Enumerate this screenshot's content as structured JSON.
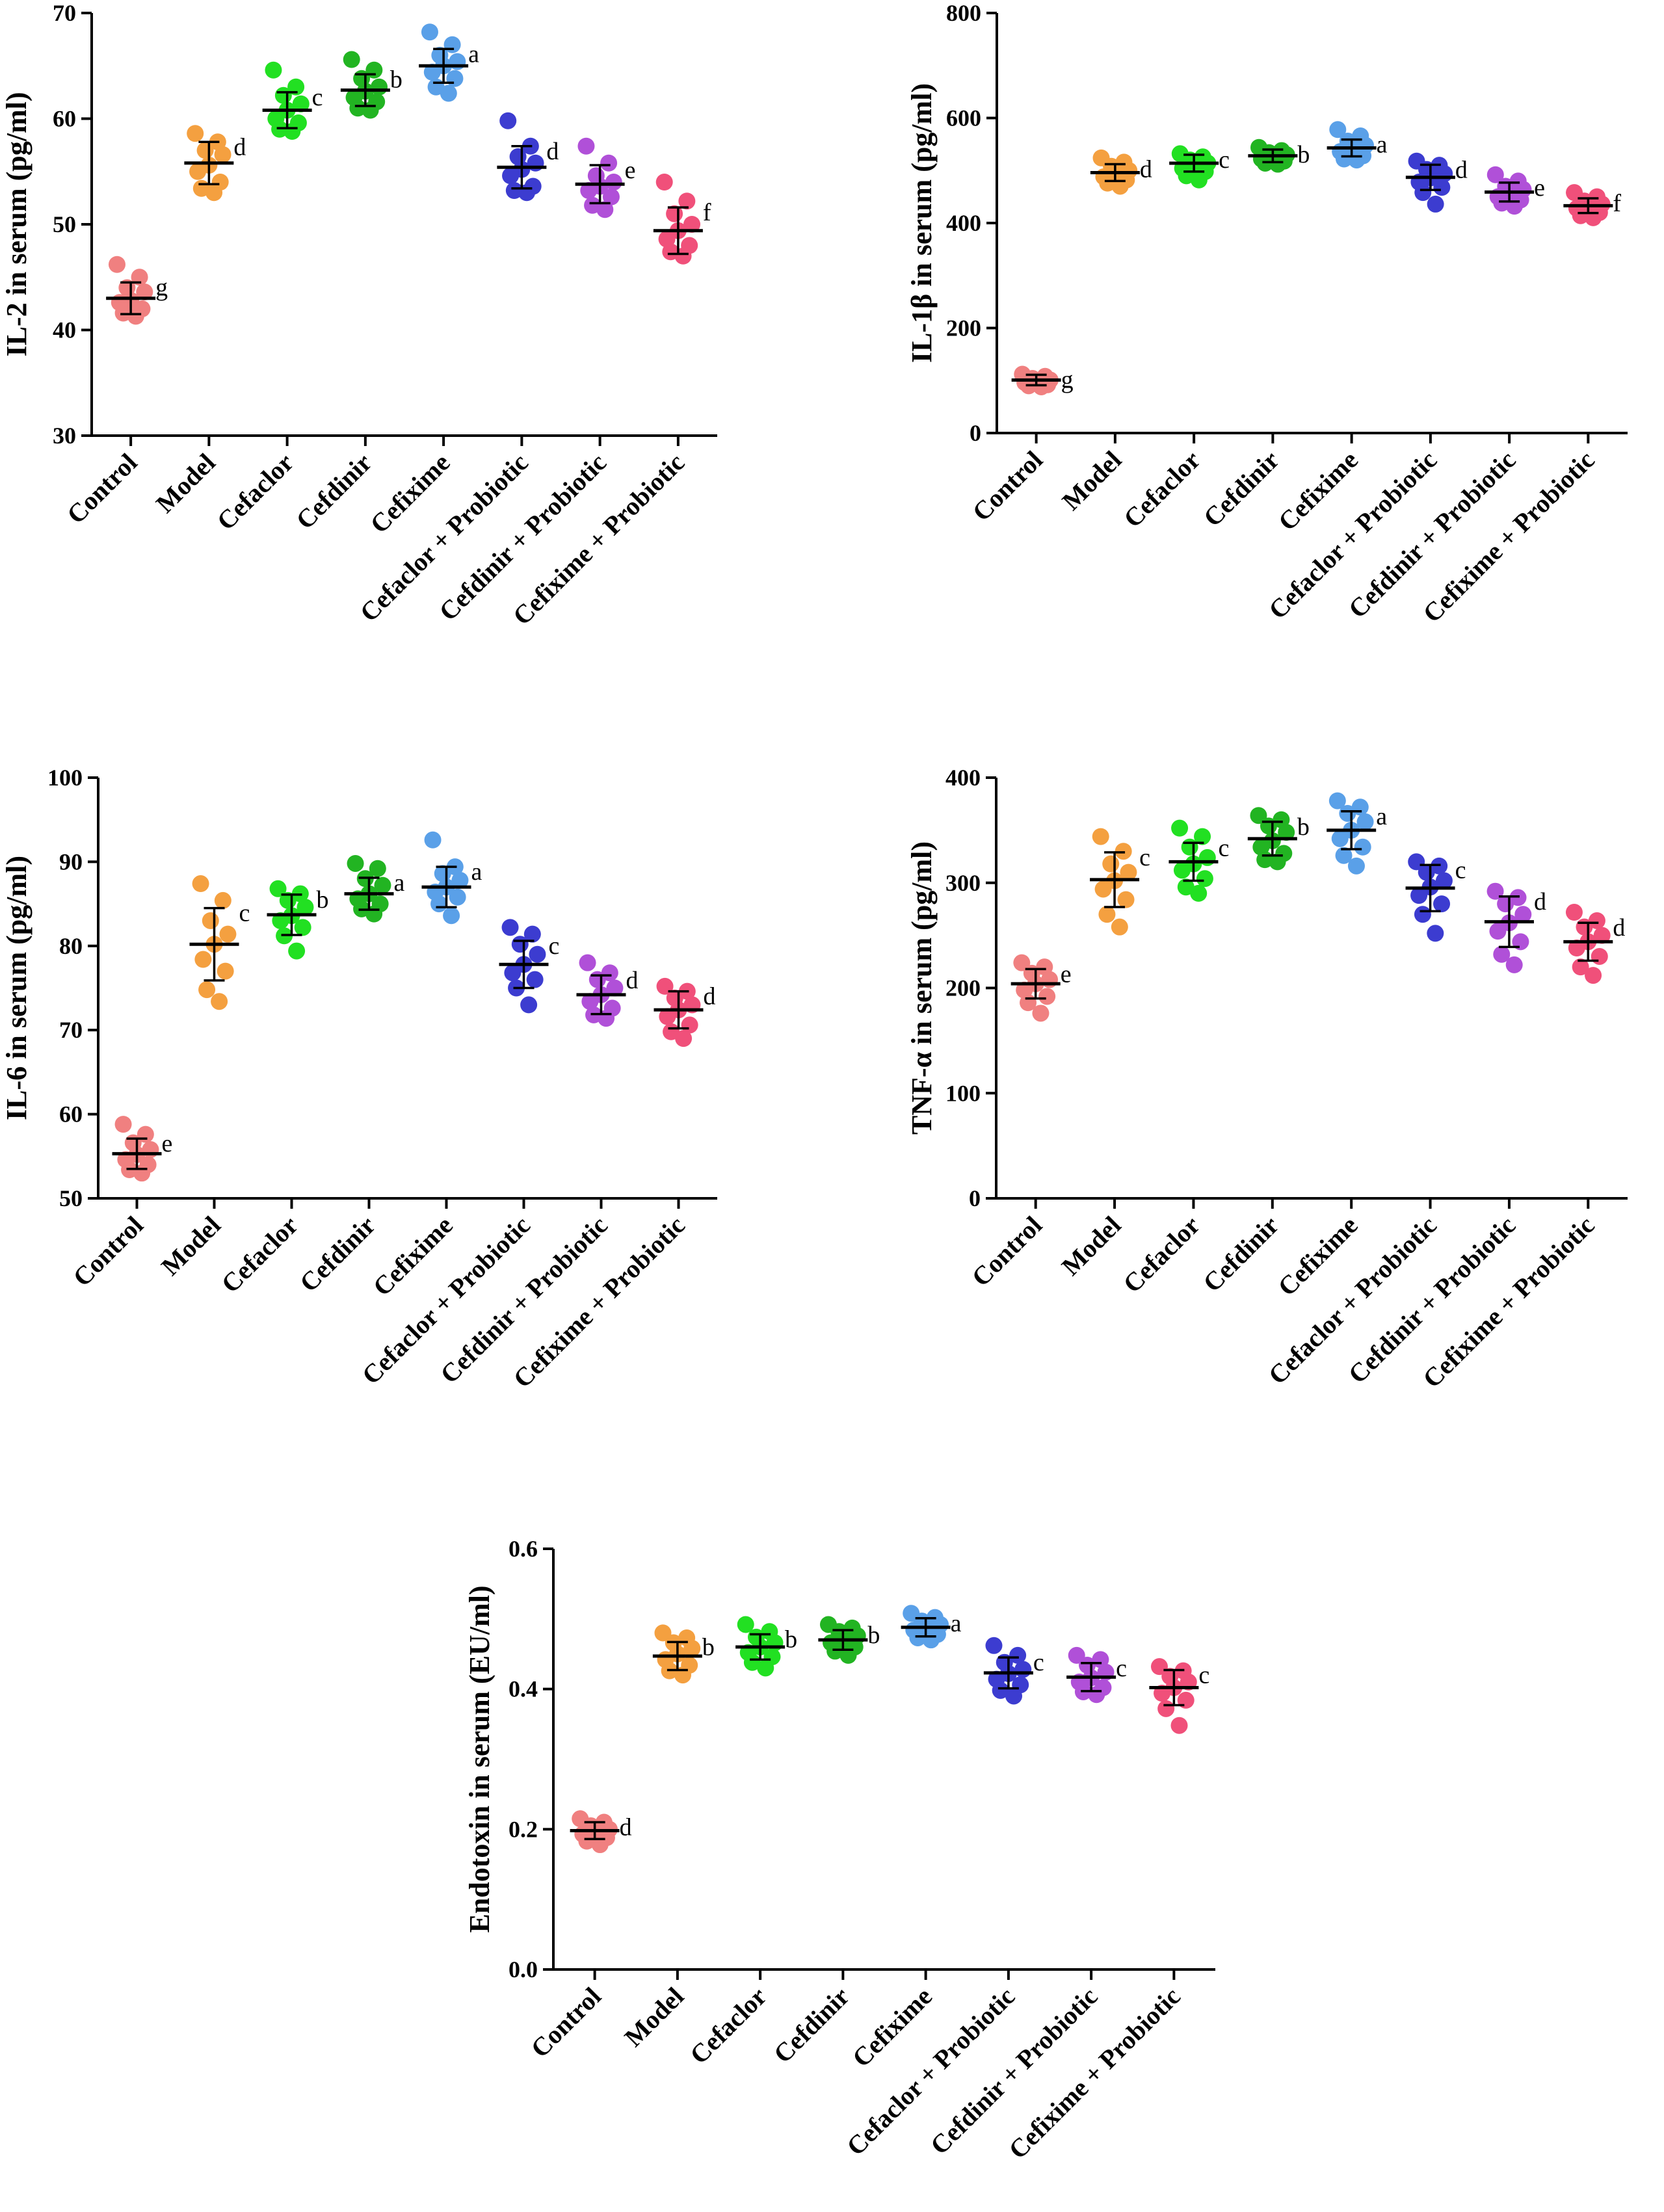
{
  "chart_data": [
    {
      "id": "il2",
      "type": "scatter",
      "ylabel": "IL-2 in serum (pg/ml)",
      "ylim": [
        30,
        70
      ],
      "yticks": [
        30,
        40,
        50,
        60,
        70
      ],
      "yticklabels": [
        "30",
        "40",
        "50",
        "60",
        "70"
      ],
      "categories": [
        "Control",
        "Model",
        "Cefaclor",
        "Cefdinir",
        "Cefixime",
        "Cefaclor + Probiotic",
        "Cefdinir + Probiotic",
        "Cefixime + Probiotic"
      ],
      "groups": [
        {
          "mean": 43.0,
          "sd": 1.5,
          "sig": "g",
          "points": [
            46.2,
            45.0,
            44.0,
            43.6,
            42.8,
            42.6,
            42.0,
            41.6,
            41.3
          ]
        },
        {
          "mean": 55.8,
          "sd": 2.0,
          "sig": "d",
          "points": [
            58.6,
            57.8,
            57.0,
            56.6,
            55.6,
            55.0,
            54.0,
            53.4,
            53.0
          ]
        },
        {
          "mean": 60.8,
          "sd": 1.7,
          "sig": "c",
          "points": [
            64.6,
            63.0,
            62.2,
            61.4,
            60.8,
            60.0,
            59.6,
            59.0,
            58.8
          ]
        },
        {
          "mean": 62.7,
          "sd": 1.5,
          "sig": "b",
          "points": [
            65.6,
            64.6,
            63.8,
            63.0,
            62.6,
            62.0,
            61.6,
            61.0,
            60.8
          ]
        },
        {
          "mean": 65.0,
          "sd": 1.6,
          "sig": "a",
          "points": [
            68.2,
            67.0,
            66.0,
            65.4,
            65.0,
            64.4,
            63.8,
            63.0,
            62.4
          ]
        },
        {
          "mean": 55.4,
          "sd": 2.0,
          "sig": "d",
          "points": [
            59.8,
            57.4,
            56.4,
            55.8,
            55.2,
            54.6,
            53.6,
            53.2,
            53.0
          ]
        },
        {
          "mean": 53.8,
          "sd": 1.8,
          "sig": "e",
          "points": [
            57.4,
            55.8,
            54.6,
            54.0,
            53.6,
            53.2,
            52.6,
            51.8,
            51.4
          ]
        },
        {
          "mean": 49.4,
          "sd": 2.2,
          "sig": "f",
          "points": [
            54.0,
            52.2,
            51.0,
            50.0,
            49.4,
            48.6,
            48.0,
            47.4,
            47.0
          ]
        }
      ]
    },
    {
      "id": "il1b",
      "type": "scatter",
      "ylabel": "IL-1β in serum (pg/ml)",
      "ylim": [
        0,
        800
      ],
      "yticks": [
        0,
        200,
        400,
        600,
        800
      ],
      "yticklabels": [
        "0",
        "200",
        "400",
        "600",
        "800"
      ],
      "categories": [
        "Control",
        "Model",
        "Cefaclor",
        "Cefdinir",
        "Cefixime",
        "Cefaclor + Probiotic",
        "Cefdinir + Probiotic",
        "Cefixime + Probiotic"
      ],
      "groups": [
        {
          "mean": 101,
          "sd": 10,
          "sig": "g",
          "points": [
            112,
            108,
            104,
            101,
            98,
            96,
            92,
            90,
            88
          ]
        },
        {
          "mean": 496,
          "sd": 16,
          "sig": "d",
          "points": [
            524,
            516,
            508,
            500,
            494,
            488,
            482,
            476,
            470
          ]
        },
        {
          "mean": 514,
          "sd": 16,
          "sig": "c",
          "points": [
            532,
            526,
            520,
            514,
            510,
            504,
            498,
            490,
            482
          ]
        },
        {
          "mean": 528,
          "sd": 12,
          "sig": "b",
          "points": [
            544,
            538,
            534,
            530,
            526,
            522,
            518,
            514,
            512
          ]
        },
        {
          "mean": 543,
          "sd": 16,
          "sig": "a",
          "points": [
            578,
            566,
            556,
            548,
            542,
            536,
            528,
            522,
            520
          ]
        },
        {
          "mean": 487,
          "sd": 24,
          "sig": "d",
          "points": [
            518,
            510,
            502,
            494,
            486,
            478,
            468,
            458,
            436
          ]
        },
        {
          "mean": 459,
          "sd": 18,
          "sig": "e",
          "points": [
            492,
            480,
            470,
            464,
            458,
            450,
            444,
            438,
            432
          ]
        },
        {
          "mean": 433,
          "sd": 14,
          "sig": "f",
          "points": [
            458,
            450,
            442,
            436,
            432,
            428,
            420,
            414,
            410
          ]
        }
      ]
    },
    {
      "id": "il6",
      "type": "scatter",
      "ylabel": "IL-6 in serum (pg/ml)",
      "ylim": [
        50,
        100
      ],
      "yticks": [
        50,
        60,
        70,
        80,
        90,
        100
      ],
      "yticklabels": [
        "50",
        "60",
        "70",
        "80",
        "90",
        "100"
      ],
      "categories": [
        "Control",
        "Model",
        "Cefaclor",
        "Cefdinir",
        "Cefixime",
        "Cefaclor + Probiotic",
        "Cefdinir + Probiotic",
        "Cefixime + Probiotic"
      ],
      "groups": [
        {
          "mean": 55.3,
          "sd": 1.8,
          "sig": "e",
          "points": [
            58.8,
            57.6,
            56.6,
            55.8,
            55.2,
            54.6,
            54.0,
            53.4,
            53.0
          ]
        },
        {
          "mean": 80.2,
          "sd": 4.3,
          "sig": "c",
          "points": [
            87.4,
            85.4,
            83.0,
            81.4,
            80.2,
            78.4,
            77.0,
            74.8,
            73.4
          ]
        },
        {
          "mean": 83.7,
          "sd": 2.4,
          "sig": "b",
          "points": [
            86.8,
            86.2,
            85.4,
            84.6,
            83.6,
            83.0,
            82.2,
            81.2,
            79.4
          ]
        },
        {
          "mean": 86.2,
          "sd": 1.9,
          "sig": "a",
          "points": [
            89.8,
            89.2,
            88.0,
            87.2,
            86.2,
            85.6,
            85.0,
            84.4,
            83.8
          ]
        },
        {
          "mean": 87.0,
          "sd": 2.4,
          "sig": "a",
          "points": [
            92.6,
            89.4,
            88.6,
            87.8,
            87.0,
            86.4,
            85.8,
            85.0,
            83.6
          ]
        },
        {
          "mean": 77.8,
          "sd": 2.8,
          "sig": "c",
          "points": [
            82.2,
            81.4,
            80.2,
            79.0,
            77.8,
            76.8,
            76.0,
            75.0,
            73.0
          ]
        },
        {
          "mean": 74.2,
          "sd": 2.3,
          "sig": "d",
          "points": [
            78.0,
            76.8,
            76.0,
            75.0,
            74.2,
            73.4,
            72.6,
            71.8,
            71.4
          ]
        },
        {
          "mean": 72.4,
          "sd": 2.2,
          "sig": "d",
          "points": [
            75.2,
            74.6,
            73.8,
            73.0,
            72.4,
            71.6,
            70.6,
            69.8,
            69.0
          ]
        }
      ]
    },
    {
      "id": "tnfa",
      "type": "scatter",
      "ylabel": "TNF-α in serum (pg/ml)",
      "ylim": [
        0,
        400
      ],
      "yticks": [
        0,
        100,
        200,
        300,
        400
      ],
      "yticklabels": [
        "0",
        "100",
        "200",
        "300",
        "400"
      ],
      "categories": [
        "Control",
        "Model",
        "Cefaclor",
        "Cefdinir",
        "Cefixime",
        "Cefaclor + Probiotic",
        "Cefdinir + Probiotic",
        "Cefixime + Probiotic"
      ],
      "groups": [
        {
          "mean": 204,
          "sd": 14,
          "sig": "e",
          "points": [
            224,
            220,
            214,
            208,
            204,
            198,
            192,
            186,
            176
          ]
        },
        {
          "mean": 303,
          "sd": 26,
          "sig": "c",
          "points": [
            344,
            330,
            318,
            310,
            302,
            294,
            284,
            270,
            258
          ]
        },
        {
          "mean": 320,
          "sd": 18,
          "sig": "c",
          "points": [
            352,
            344,
            334,
            324,
            318,
            312,
            304,
            296,
            290
          ]
        },
        {
          "mean": 342,
          "sd": 16,
          "sig": "b",
          "points": [
            364,
            360,
            354,
            348,
            340,
            334,
            328,
            322,
            320
          ]
        },
        {
          "mean": 350,
          "sd": 18,
          "sig": "a",
          "points": [
            378,
            372,
            366,
            358,
            350,
            342,
            334,
            326,
            316
          ]
        },
        {
          "mean": 295,
          "sd": 22,
          "sig": "c",
          "points": [
            320,
            316,
            310,
            302,
            296,
            288,
            280,
            270,
            252
          ]
        },
        {
          "mean": 263,
          "sd": 24,
          "sig": "d",
          "points": [
            292,
            286,
            280,
            270,
            262,
            254,
            244,
            232,
            222
          ]
        },
        {
          "mean": 244,
          "sd": 18,
          "sig": "d",
          "points": [
            272,
            264,
            258,
            250,
            244,
            238,
            230,
            220,
            212
          ]
        }
      ]
    },
    {
      "id": "endotoxin",
      "type": "scatter",
      "ylabel": "Endotoxin in serum (EU/ml)",
      "ylim": [
        0.0,
        0.6
      ],
      "yticks": [
        0.0,
        0.2,
        0.4,
        0.6
      ],
      "yticklabels": [
        "0.0",
        "0.2",
        "0.4",
        "0.6"
      ],
      "categories": [
        "Control",
        "Model",
        "Cefaclor",
        "Cefdinir",
        "Cefixime",
        "Cefaclor + Probiotic",
        "Cefdinir + Probiotic",
        "Cefixime + Probiotic"
      ],
      "groups": [
        {
          "mean": 0.198,
          "sd": 0.012,
          "sig": "d",
          "points": [
            0.215,
            0.21,
            0.205,
            0.2,
            0.197,
            0.193,
            0.188,
            0.183,
            0.178
          ]
        },
        {
          "mean": 0.447,
          "sd": 0.02,
          "sig": "b",
          "points": [
            0.48,
            0.473,
            0.466,
            0.458,
            0.45,
            0.442,
            0.434,
            0.426,
            0.42
          ]
        },
        {
          "mean": 0.46,
          "sd": 0.018,
          "sig": "b",
          "points": [
            0.492,
            0.482,
            0.474,
            0.466,
            0.46,
            0.452,
            0.446,
            0.438,
            0.43
          ]
        },
        {
          "mean": 0.47,
          "sd": 0.014,
          "sig": "b",
          "points": [
            0.492,
            0.487,
            0.482,
            0.476,
            0.47,
            0.466,
            0.46,
            0.454,
            0.448
          ]
        },
        {
          "mean": 0.488,
          "sd": 0.013,
          "sig": "a",
          "points": [
            0.508,
            0.502,
            0.497,
            0.492,
            0.488,
            0.484,
            0.478,
            0.473,
            0.47
          ]
        },
        {
          "mean": 0.423,
          "sd": 0.022,
          "sig": "c",
          "points": [
            0.462,
            0.448,
            0.438,
            0.428,
            0.422,
            0.414,
            0.406,
            0.398,
            0.39
          ]
        },
        {
          "mean": 0.417,
          "sd": 0.02,
          "sig": "c",
          "points": [
            0.448,
            0.442,
            0.434,
            0.424,
            0.416,
            0.41,
            0.402,
            0.396,
            0.392
          ]
        },
        {
          "mean": 0.402,
          "sd": 0.025,
          "sig": "c",
          "points": [
            0.432,
            0.426,
            0.418,
            0.41,
            0.402,
            0.394,
            0.384,
            0.372,
            0.348
          ]
        }
      ]
    }
  ],
  "colors": [
    "#F08080",
    "#F4A040",
    "#22E022",
    "#22B422",
    "#5AA0E8",
    "#3C3CD0",
    "#B050D8",
    "#F0507A"
  ]
}
